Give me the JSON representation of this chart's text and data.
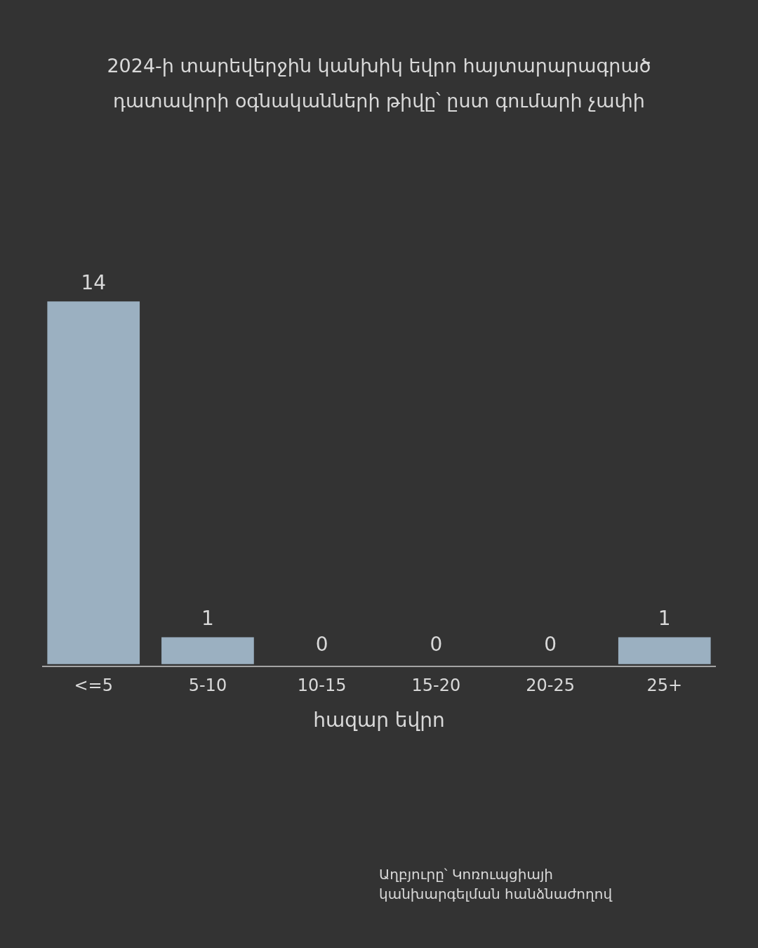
{
  "chart_data": {
    "type": "bar",
    "title": "2024-ի տարեվերջին կանխիկ եվրո հայտարարագրած դատավորի օգնականների թիվը՝ ըստ գումարի չափի",
    "xlabel": "հազար եվրո",
    "categories": [
      "<=5",
      "5-10",
      "10-15",
      "15-20",
      "20-25",
      "25+"
    ],
    "values": [
      14,
      1,
      0,
      0,
      0,
      1
    ],
    "color": "#9bb0c1",
    "data_labels": true,
    "annotations": [
      "Աղբյուրը՝ Կոռուպցիայի կանխարգելման հանձնաժողով"
    ]
  }
}
